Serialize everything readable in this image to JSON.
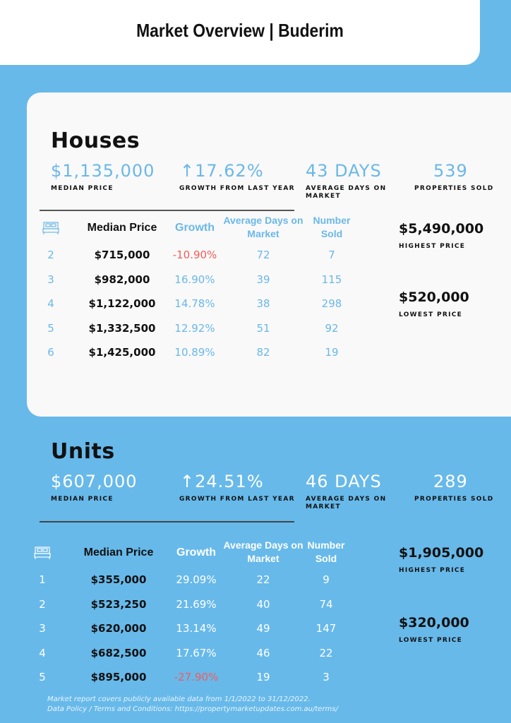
{
  "title": "Market Overview | Buderim",
  "colors": {
    "background": "#67b9ea",
    "accent": "#6ab8e8",
    "negative": "#f55b5b"
  },
  "houses": {
    "heading": "Houses",
    "median_price": "$1,135,000",
    "median_label": "MEDIAN PRICE",
    "growth": "↑17.62%",
    "growth_label": "GROWTH FROM LAST YEAR",
    "days": "43 DAYS",
    "days_label": "AVERAGE DAYS ON MARKET",
    "sold": "539",
    "sold_label": "PROPERTIES SOLD",
    "headers": {
      "bed_icon": "bed-icon",
      "median": "Median Price",
      "growth": "Growth",
      "days": "Average Days on Market",
      "sold": "Number Sold"
    },
    "rows": [
      {
        "beds": "2",
        "price": "$715,000",
        "growth": "-10.90%",
        "days": "72",
        "sold": "7"
      },
      {
        "beds": "3",
        "price": "$982,000",
        "growth": "16.90%",
        "days": "39",
        "sold": "115"
      },
      {
        "beds": "4",
        "price": "$1,122,000",
        "growth": "14.78%",
        "days": "38",
        "sold": "298"
      },
      {
        "beds": "5",
        "price": "$1,332,500",
        "growth": "12.92%",
        "days": "51",
        "sold": "92"
      },
      {
        "beds": "6",
        "price": "$1,425,000",
        "growth": "10.89%",
        "days": "82",
        "sold": "19"
      }
    ],
    "highest": "$5,490,000",
    "highest_label": "HIGHEST PRICE",
    "lowest": "$520,000",
    "lowest_label": "LOWEST PRICE"
  },
  "units": {
    "heading": "Units",
    "median_price": "$607,000",
    "median_label": "MEDIAN PRICE",
    "growth": "↑24.51%",
    "growth_label": "GROWTH FROM LAST YEAR",
    "days": "46 DAYS",
    "days_label": "AVERAGE DAYS ON MARKET",
    "sold": "289",
    "sold_label": "PROPERTIES SOLD",
    "headers": {
      "bed_icon": "bed-icon",
      "median": "Median Price",
      "growth": "Growth",
      "days": "Average Days on Market",
      "sold": "Number Sold"
    },
    "rows": [
      {
        "beds": "1",
        "price": "$355,000",
        "growth": "29.09%",
        "days": "22",
        "sold": "9"
      },
      {
        "beds": "2",
        "price": "$523,250",
        "growth": "21.69%",
        "days": "40",
        "sold": "74"
      },
      {
        "beds": "3",
        "price": "$620,000",
        "growth": "13.14%",
        "days": "49",
        "sold": "147"
      },
      {
        "beds": "4",
        "price": "$682,500",
        "growth": "17.67%",
        "days": "46",
        "sold": "22"
      },
      {
        "beds": "5",
        "price": "$895,000",
        "growth": "-27.90%",
        "days": "19",
        "sold": "3"
      }
    ],
    "highest": "$1,905,000",
    "highest_label": "HIGHEST PRICE",
    "lowest": "$320,000",
    "lowest_label": "LOWEST PRICE"
  },
  "footer": {
    "line1": "Market report covers publicly available data from 1/1/2022 to 31/12/2022.",
    "line2": "Data Policy / Terms and Conditions: https://propertymarketupdates.com.au/terms/"
  }
}
